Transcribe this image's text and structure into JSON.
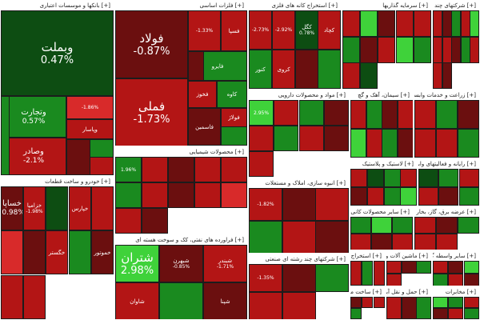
{
  "colors": {
    "deep_red": "#6b0f0f",
    "red": "#b31515",
    "light_red": "#d82a2a",
    "deep_green": "#0d4d12",
    "green": "#1a8a1f",
    "bright_green": "#3fd23a",
    "neutral": "#4a4a4a"
  },
  "sectors": [
    {
      "title": "بانکها و موسسات اعتباری",
      "tiles": [
        {
          "name": "وبملت",
          "change": "0.47%",
          "color": "deep_green",
          "size": "big"
        },
        {
          "name": "وتجارت",
          "change": "0.57%",
          "color": "green",
          "size": "mid"
        },
        {
          "name": "وصادر",
          "change": "-2.1%",
          "color": "red",
          "size": "mid"
        },
        {
          "name": "",
          "change": "-1.86%",
          "color": "light_red"
        },
        {
          "name": "وپاسار",
          "change": "",
          "color": "red"
        },
        {
          "name": "",
          "change": "",
          "color": "deep_red"
        },
        {
          "name": "",
          "change": "",
          "color": "green"
        },
        {
          "name": "",
          "change": "",
          "color": "red"
        },
        {
          "name": "",
          "change": "",
          "color": "green"
        }
      ]
    },
    {
      "title": "فلزات اساسی",
      "tiles": [
        {
          "name": "فولاد",
          "change": "-0.87%",
          "color": "deep_red",
          "size": "big"
        },
        {
          "name": "فملی",
          "change": "-1.73%",
          "color": "red",
          "size": "big"
        },
        {
          "name": "",
          "change": "-1.33%",
          "color": "red"
        },
        {
          "name": "فسپا",
          "change": "",
          "color": "red"
        },
        {
          "name": "فایرو",
          "change": "",
          "color": "green"
        },
        {
          "name": "فخوز",
          "change": "",
          "color": "red"
        },
        {
          "name": "کاوه",
          "change": "",
          "color": "green"
        },
        {
          "name": "فاسمین",
          "change": "",
          "color": "deep_red"
        },
        {
          "name": "فولاژ",
          "change": "",
          "color": "red"
        },
        {
          "name": "",
          "change": "",
          "color": "green"
        },
        {
          "name": "",
          "change": "",
          "color": "deep_red"
        }
      ]
    },
    {
      "title": "استخراج کانه های فلزی",
      "tiles": [
        {
          "name": "",
          "change": "-2.73%",
          "color": "red"
        },
        {
          "name": "",
          "change": "-2.92%",
          "color": "red"
        },
        {
          "name": "کگل",
          "change": "0.78%",
          "color": "deep_green"
        },
        {
          "name": "کچاد",
          "change": "",
          "color": "red"
        },
        {
          "name": "کنور",
          "change": "",
          "color": "green"
        },
        {
          "name": "کروی",
          "change": "",
          "color": "red"
        },
        {
          "name": "",
          "change": "",
          "color": "deep_red"
        },
        {
          "name": "",
          "change": "",
          "color": "green"
        }
      ]
    },
    {
      "title": "سرمایه گذاریها",
      "tiles": [
        {
          "name": "",
          "change": "",
          "color": "red"
        },
        {
          "name": "",
          "change": "",
          "color": "bright_green"
        },
        {
          "name": "",
          "change": "",
          "color": "deep_red"
        },
        {
          "name": "",
          "change": "",
          "color": "red"
        },
        {
          "name": "",
          "change": "",
          "color": "red"
        },
        {
          "name": "",
          "change": "",
          "color": "green"
        },
        {
          "name": "",
          "change": "",
          "color": "deep_red"
        },
        {
          "name": "",
          "change": "",
          "color": "red"
        },
        {
          "name": "",
          "change": "",
          "color": "bright_green"
        },
        {
          "name": "",
          "change": "",
          "color": "green"
        },
        {
          "name": "",
          "change": "",
          "color": "red"
        },
        {
          "name": "",
          "change": "",
          "color": "deep_green"
        }
      ]
    },
    {
      "title": "شرکتهای چند رشته ای صنعتی",
      "tiles": [
        {
          "name": "",
          "change": "",
          "color": "red"
        },
        {
          "name": "",
          "change": "",
          "color": "deep_red"
        },
        {
          "name": "",
          "change": "",
          "color": "green"
        },
        {
          "name": "",
          "change": "",
          "color": "red"
        },
        {
          "name": "",
          "change": "",
          "color": "bright_green"
        },
        {
          "name": "",
          "change": "",
          "color": "red"
        },
        {
          "name": "",
          "change": "",
          "color": "red"
        },
        {
          "name": "",
          "change": "",
          "color": "deep_red"
        },
        {
          "name": "",
          "change": "",
          "color": "green"
        },
        {
          "name": "",
          "change": "",
          "color": "red"
        },
        {
          "name": "",
          "change": "",
          "color": "red"
        },
        {
          "name": "",
          "change": "",
          "color": "deep_red"
        }
      ]
    },
    {
      "title": "خودرو و ساخت قطعات",
      "tiles": [
        {
          "name": "خساپا",
          "change": "-0.98%",
          "color": "deep_red",
          "size": "mid"
        },
        {
          "name": "خزامیا",
          "change": "-1.98%",
          "color": "red"
        },
        {
          "name": "",
          "change": "",
          "color": "deep_green"
        },
        {
          "name": "خپارس",
          "change": "",
          "color": "red"
        },
        {
          "name": "",
          "change": "",
          "color": "red"
        },
        {
          "name": "",
          "change": "",
          "color": "light_red"
        },
        {
          "name": "",
          "change": "",
          "color": "deep_red"
        },
        {
          "name": "خگستر",
          "change": "",
          "color": "red"
        },
        {
          "name": "",
          "change": "",
          "color": "green"
        },
        {
          "name": "خموتور",
          "change": "",
          "color": "deep_red"
        },
        {
          "name": "",
          "change": "",
          "color": "red"
        },
        {
          "name": "",
          "change": "",
          "color": "red"
        }
      ]
    },
    {
      "title": "محصولات شیمیایی",
      "tiles": [
        {
          "name": "",
          "change": "1.96%",
          "color": "green"
        },
        {
          "name": "",
          "change": "",
          "color": "red"
        },
        {
          "name": "",
          "change": "",
          "color": "deep_red"
        },
        {
          "name": "",
          "change": "",
          "color": "red"
        },
        {
          "name": "",
          "change": "",
          "color": "red"
        },
        {
          "name": "",
          "change": "",
          "color": "green"
        },
        {
          "name": "",
          "change": "",
          "color": "red"
        },
        {
          "name": "",
          "change": "",
          "color": "deep_red"
        },
        {
          "name": "",
          "change": "",
          "color": "red"
        },
        {
          "name": "",
          "change": "",
          "color": "light_red"
        },
        {
          "name": "",
          "change": "",
          "color": "red"
        },
        {
          "name": "",
          "change": "",
          "color": "deep_red"
        }
      ]
    },
    {
      "title": "فراورده های نفتی، کک و سوخت هسته ای",
      "tiles": [
        {
          "name": "شتران",
          "change": "2.98%",
          "color": "bright_green",
          "size": "big"
        },
        {
          "name": "شبهرن",
          "change": "-0.85%",
          "color": "deep_red"
        },
        {
          "name": "شبندر",
          "change": "-1.71%",
          "color": "red"
        },
        {
          "name": "شاوان",
          "change": "",
          "color": "red"
        },
        {
          "name": "",
          "change": "",
          "color": "green"
        },
        {
          "name": "شپنا",
          "change": "",
          "color": "deep_red"
        }
      ]
    },
    {
      "title": "مواد و محصولات دارویی",
      "tiles": [
        {
          "name": "",
          "change": "2.95%",
          "color": "bright_green"
        },
        {
          "name": "",
          "change": "",
          "color": "red"
        },
        {
          "name": "",
          "change": "",
          "color": "green"
        },
        {
          "name": "",
          "change": "",
          "color": "deep_red"
        },
        {
          "name": "",
          "change": "",
          "color": "red"
        },
        {
          "name": "",
          "change": "",
          "color": "green"
        },
        {
          "name": "",
          "change": "",
          "color": "red"
        },
        {
          "name": "",
          "change": "",
          "color": "deep_red"
        },
        {
          "name": "",
          "change": "",
          "color": "red"
        }
      ]
    },
    {
      "title": "انبوه سازی، املاک و مستغلات",
      "tiles": [
        {
          "name": "",
          "change": "-1.82%",
          "color": "red"
        },
        {
          "name": "",
          "change": "",
          "color": "deep_red"
        },
        {
          "name": "",
          "change": "",
          "color": "red"
        },
        {
          "name": "",
          "change": "",
          "color": "green"
        },
        {
          "name": "",
          "change": "",
          "color": "red"
        },
        {
          "name": "",
          "change": "",
          "color": "deep_red"
        }
      ]
    },
    {
      "title": "شرکتهای چند رشته ای صنعتی",
      "tiles": [
        {
          "name": "",
          "change": "-1.35%",
          "color": "red"
        },
        {
          "name": "",
          "change": "",
          "color": "deep_red"
        },
        {
          "name": "",
          "change": "",
          "color": "green"
        },
        {
          "name": "",
          "change": "",
          "color": "red"
        },
        {
          "name": "",
          "change": "",
          "color": "red"
        }
      ]
    },
    {
      "title": "سیمان، آهک و گچ",
      "tiles": [
        {
          "name": "",
          "change": "",
          "color": "red"
        },
        {
          "name": "",
          "change": "",
          "color": "green"
        },
        {
          "name": "",
          "change": "",
          "color": "deep_red"
        },
        {
          "name": "",
          "change": "",
          "color": "red"
        },
        {
          "name": "",
          "change": "",
          "color": "bright_green"
        },
        {
          "name": "",
          "change": "",
          "color": "red"
        },
        {
          "name": "",
          "change": "",
          "color": "green"
        },
        {
          "name": "",
          "change": "",
          "color": "deep_red"
        }
      ]
    },
    {
      "title": "زراعت و خدمات وابسته",
      "tiles": [
        {
          "name": "",
          "change": "",
          "color": "red"
        },
        {
          "name": "",
          "change": "",
          "color": "green"
        },
        {
          "name": "",
          "change": "",
          "color": "deep_red"
        },
        {
          "name": "",
          "change": "",
          "color": "red"
        },
        {
          "name": "",
          "change": "",
          "color": "red"
        },
        {
          "name": "",
          "change": "",
          "color": "green"
        }
      ]
    },
    {
      "title": "لاستیک و پلاستیک",
      "tiles": [
        {
          "name": "",
          "change": "",
          "color": "red"
        },
        {
          "name": "",
          "change": "",
          "color": "deep_green"
        },
        {
          "name": "",
          "change": "",
          "color": "green"
        },
        {
          "name": "",
          "change": "",
          "color": "red"
        },
        {
          "name": "",
          "change": "",
          "color": "deep_red"
        },
        {
          "name": "",
          "change": "",
          "color": "red"
        },
        {
          "name": "",
          "change": "",
          "color": "green"
        },
        {
          "name": "",
          "change": "",
          "color": "bright_green"
        }
      ]
    },
    {
      "title": "رایانه و فعالیتهای وابسته",
      "tiles": [
        {
          "name": "",
          "change": "",
          "color": "deep_green"
        },
        {
          "name": "",
          "change": "",
          "color": "green"
        },
        {
          "name": "",
          "change": "",
          "color": "red"
        },
        {
          "name": "",
          "change": "",
          "color": "red"
        },
        {
          "name": "",
          "change": "",
          "color": "deep_red"
        },
        {
          "name": "",
          "change": "",
          "color": "green"
        }
      ]
    },
    {
      "title": "سایر محصولات کانی غیرفلزی",
      "tiles": [
        {
          "name": "",
          "change": "",
          "color": "green"
        },
        {
          "name": "",
          "change": "",
          "color": "bright_green"
        },
        {
          "name": "",
          "change": "",
          "color": "green"
        },
        {
          "name": "",
          "change": "",
          "color": "red"
        },
        {
          "name": "",
          "change": "",
          "color": "deep_red"
        },
        {
          "name": "",
          "change": "",
          "color": "red"
        }
      ]
    },
    {
      "title": "عرضه برق، گاز، بخار و آب گرم",
      "tiles": [
        {
          "name": "",
          "change": "",
          "color": "red"
        },
        {
          "name": "",
          "change": "",
          "color": "deep_red"
        },
        {
          "name": "",
          "change": "",
          "color": "green"
        },
        {
          "name": "",
          "change": "",
          "color": "red"
        },
        {
          "name": "",
          "change": "",
          "color": "red"
        }
      ]
    },
    {
      "title": "استخراج زغال سنگ",
      "tiles": [
        {
          "name": "",
          "change": "",
          "color": "red"
        },
        {
          "name": "",
          "change": "",
          "color": "green"
        },
        {
          "name": "",
          "change": "",
          "color": "red"
        }
      ]
    },
    {
      "title": "ماشین آلات و تجهیزات",
      "tiles": [
        {
          "name": "",
          "change": "",
          "color": "red"
        },
        {
          "name": "",
          "change": "",
          "color": "deep_red"
        },
        {
          "name": "",
          "change": "",
          "color": "green"
        },
        {
          "name": "",
          "change": "",
          "color": "red"
        }
      ]
    },
    {
      "title": "سایر واسطه گریهای مالی",
      "tiles": [
        {
          "name": "",
          "change": "",
          "color": "red"
        },
        {
          "name": "",
          "change": "",
          "color": "deep_red"
        },
        {
          "name": "",
          "change": "",
          "color": "bright_green"
        },
        {
          "name": "",
          "change": "",
          "color": "green"
        },
        {
          "name": "",
          "change": "",
          "color": "red"
        },
        {
          "name": "",
          "change": "",
          "color": "deep_red"
        }
      ]
    },
    {
      "title": "ساخت محصولات فلزی",
      "tiles": [
        {
          "name": "",
          "change": "",
          "color": "deep_red"
        },
        {
          "name": "",
          "change": "",
          "color": "red"
        },
        {
          "name": "",
          "change": "",
          "color": "red"
        },
        {
          "name": "",
          "change": "",
          "color": "green"
        }
      ]
    },
    {
      "title": "حمل و نقل آبی",
      "tiles": [
        {
          "name": "",
          "change": "",
          "color": "red"
        },
        {
          "name": "",
          "change": "",
          "color": "deep_red"
        },
        {
          "name": "",
          "change": "",
          "color": "green"
        }
      ]
    },
    {
      "title": "مخابرات",
      "tiles": [
        {
          "name": "",
          "change": "",
          "color": "bright_green"
        },
        {
          "name": "",
          "change": "",
          "color": "green"
        },
        {
          "name": "",
          "change": "",
          "color": "red"
        },
        {
          "name": "",
          "change": "",
          "color": "deep_red"
        },
        {
          "name": "",
          "change": "",
          "color": "red"
        },
        {
          "name": "",
          "change": "",
          "color": "green"
        }
      ]
    },
    {
      "title": "ماشین آلات و دستگاه های برقی",
      "tiles": [
        {
          "name": "",
          "change": "",
          "color": "red"
        },
        {
          "name": "",
          "change": "",
          "color": "deep_red"
        },
        {
          "name": "",
          "change": "",
          "color": "red"
        },
        {
          "name": "",
          "change": "",
          "color": "green"
        }
      ]
    }
  ]
}
